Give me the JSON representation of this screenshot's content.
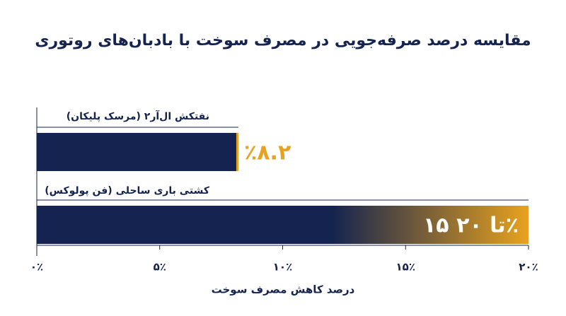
{
  "chart_data": {
    "type": "bar",
    "orientation": "horizontal",
    "title": "مقایسه درصد صرفه‌جویی در مصرف سوخت با بادبان‌های روتوری",
    "categories": [
      "نفتکش ال‌آر۲ (مرسک پلیکان)",
      "کشتی باری ساحلی (فن پولوکس)"
    ],
    "values": [
      8.2,
      20
    ],
    "low": [
      null,
      15
    ],
    "value_labels": [
      "٪۸.۲",
      "۱۵ تا ۲۰٪"
    ],
    "color": "#14234f",
    "accent_color": "#e8a21f",
    "xlabel": "درصد کاهش مصرف سوخت",
    "xlim": [
      0,
      20
    ],
    "xticks": [
      {
        "value": 0,
        "label": "۰٪"
      },
      {
        "value": 5,
        "label": "۵٪"
      },
      {
        "value": 10,
        "label": "۱۰٪"
      },
      {
        "value": 15,
        "label": "۱۵٪"
      },
      {
        "value": 20,
        "label": "۲۰٪"
      }
    ]
  }
}
